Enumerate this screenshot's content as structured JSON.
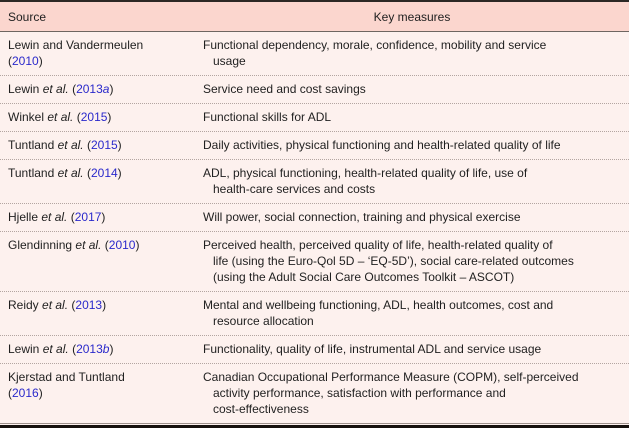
{
  "colors": {
    "header_bg": "#fbd6ce",
    "body_bg": "#fdf1ee",
    "text": "#1f1f1f",
    "citation_link": "#2a29cb",
    "row_divider_dotted": "#b3a5a1",
    "top_rule": "#2c2825",
    "bottom_rule": "#15100d"
  },
  "punct": {
    "open": "(",
    "close": ")"
  },
  "etal_label": "et al.",
  "header": {
    "source": "Source",
    "measures": "Key measures"
  },
  "rows": [
    {
      "name": "Lewin and Vandermeulen",
      "year": "2010",
      "suffix": "",
      "measures": [
        "Functional dependency, morale, confidence, mobility and service",
        "usage"
      ]
    },
    {
      "name": "Lewin",
      "year": "2013",
      "suffix": "a",
      "measures": [
        "Service need and cost savings"
      ]
    },
    {
      "name": "Winkel",
      "year": "2015",
      "suffix": "",
      "measures": [
        "Functional skills for ADL"
      ]
    },
    {
      "name": "Tuntland",
      "year": "2015",
      "suffix": "",
      "measures": [
        "Daily activities, physical functioning and health-related quality of life"
      ]
    },
    {
      "name": "Tuntland",
      "year": "2014",
      "suffix": "",
      "measures": [
        "ADL, physical functioning, health-related quality of life, use of",
        "health-care services and costs"
      ]
    },
    {
      "name": "Hjelle",
      "year": "2017",
      "suffix": "",
      "measures": [
        "Will power, social connection, training and physical exercise"
      ]
    },
    {
      "name": "Glendinning",
      "year": "2010",
      "suffix": "",
      "measures": [
        "Perceived health, perceived quality of life, health-related quality of",
        "life (using the Euro-Qol 5D – ‘EQ-5D’), social care-related outcomes",
        "(using the Adult Social Care Outcomes Toolkit – ASCOT)"
      ]
    },
    {
      "name": "Reidy",
      "year": "2013",
      "suffix": "",
      "measures": [
        "Mental and wellbeing functioning, ADL, health outcomes, cost and",
        "resource allocation"
      ]
    },
    {
      "name": "Lewin",
      "year": "2013",
      "suffix": "b",
      "measures": [
        "Functionality, quality of life, instrumental ADL and service usage"
      ]
    },
    {
      "name": "Kjerstad and Tuntland",
      "year": "2016",
      "suffix": "",
      "measures": [
        "Canadian Occupational Performance Measure (COPM), self-perceived",
        "activity performance, satisfaction with performance and",
        "cost-effectiveness"
      ]
    }
  ]
}
